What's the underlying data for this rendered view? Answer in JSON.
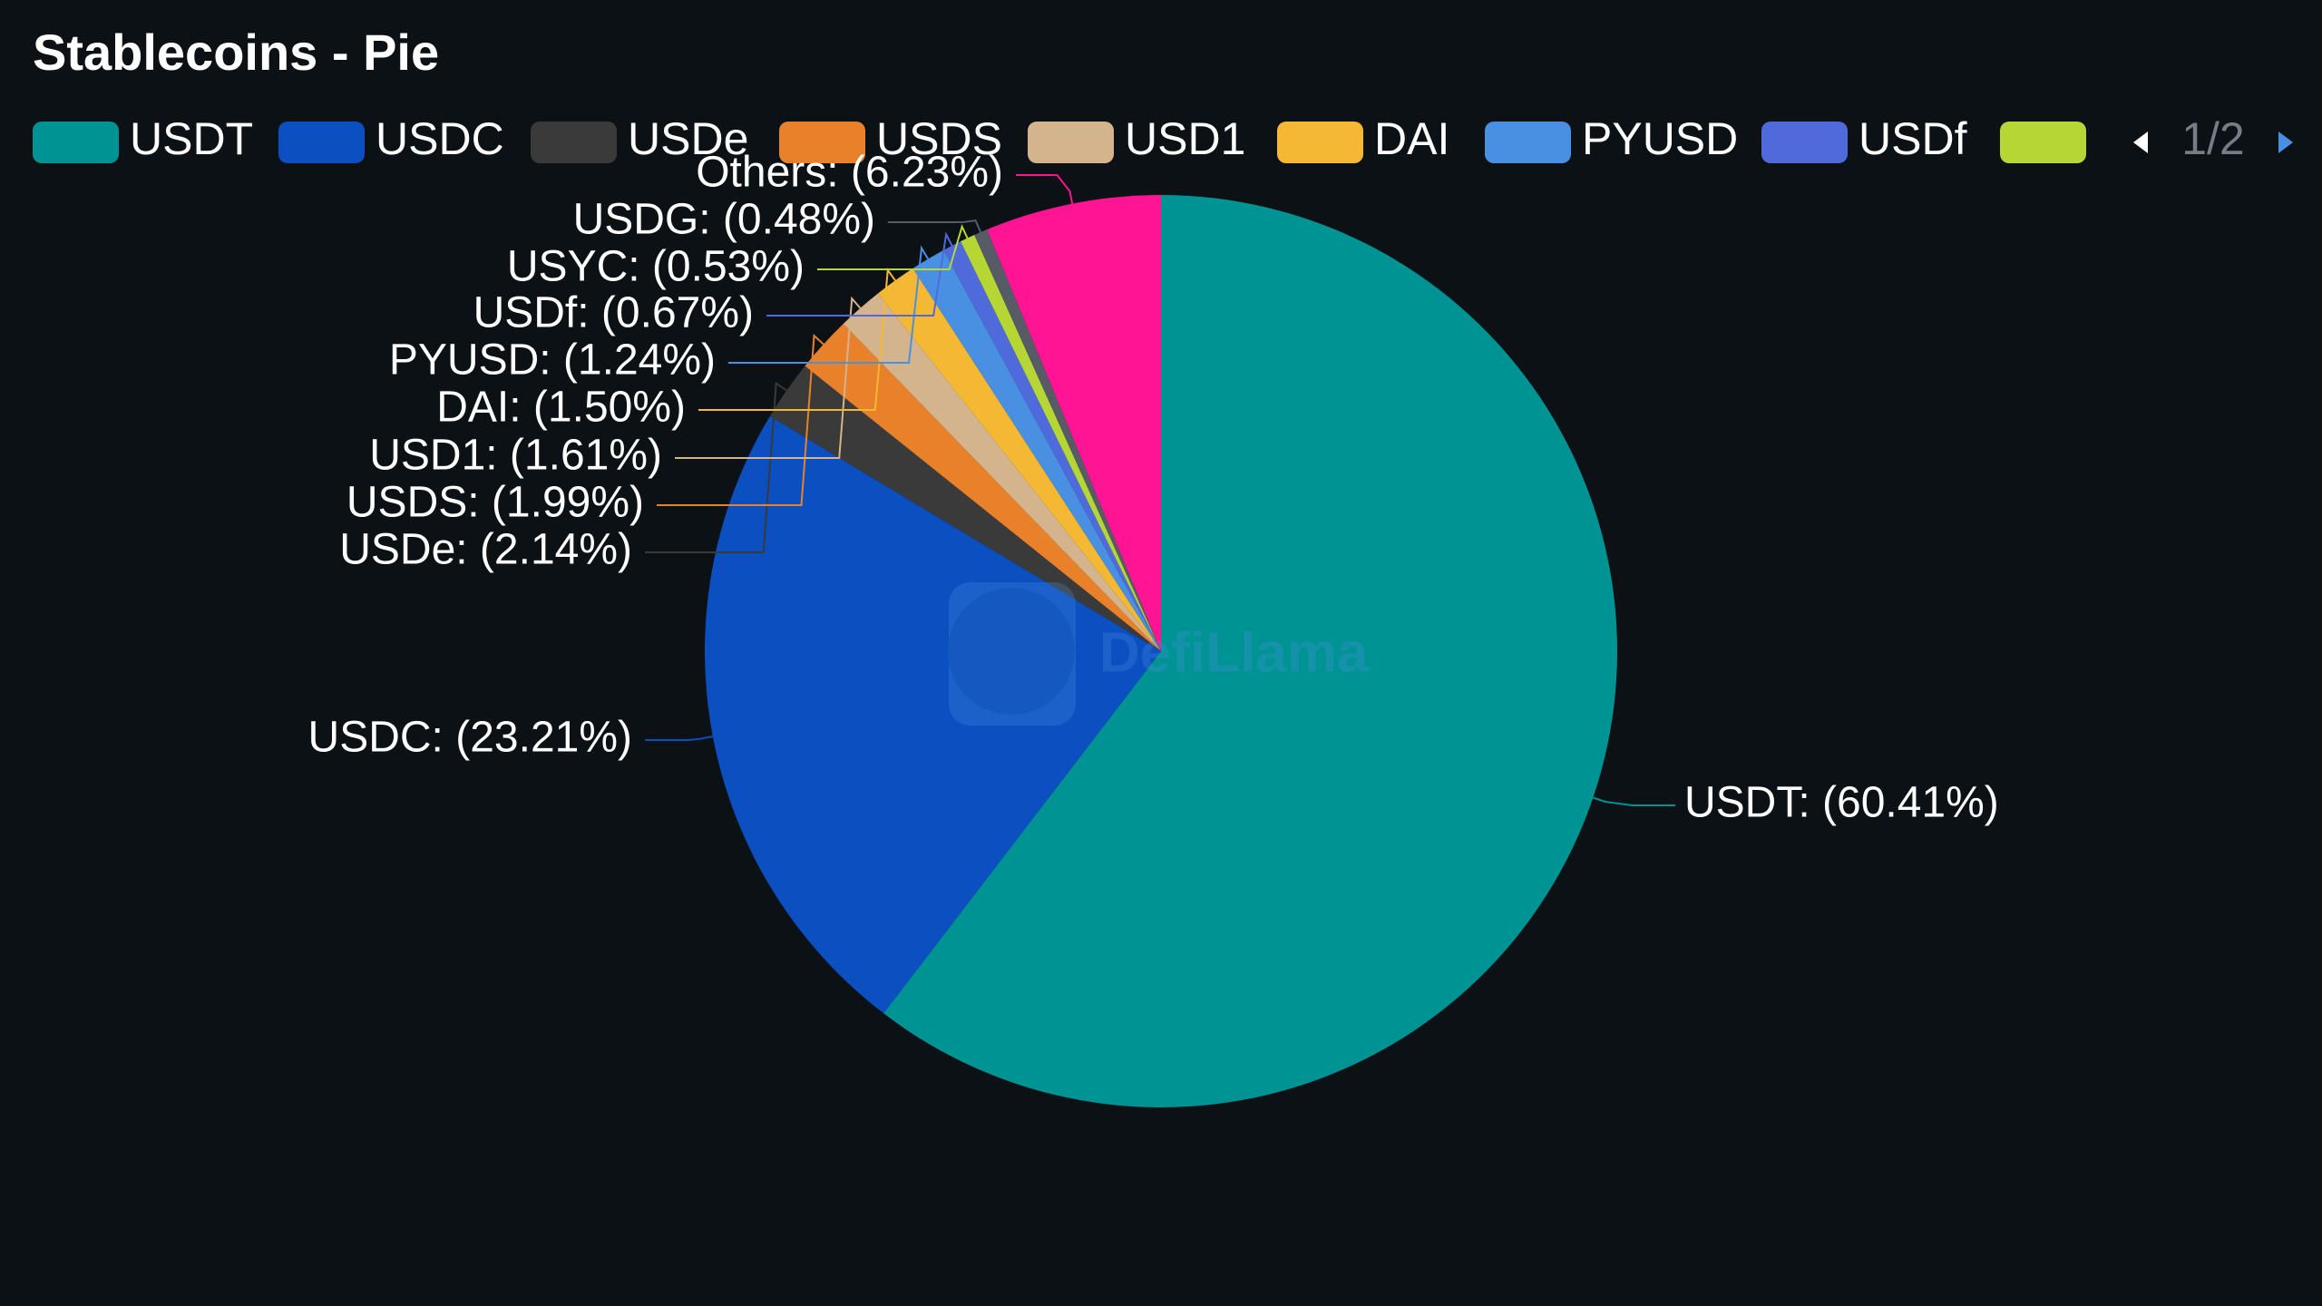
{
  "chart_data": {
    "type": "pie",
    "title": "Stablecoins - Pie",
    "categories": [
      "USDT",
      "USDC",
      "USDe",
      "USDS",
      "USD1",
      "DAI",
      "PYUSD",
      "USDf",
      "USYC",
      "USDG",
      "Others"
    ],
    "values": [
      60.41,
      23.21,
      2.14,
      1.99,
      1.61,
      1.5,
      1.24,
      0.67,
      0.53,
      0.48,
      6.23
    ],
    "value_labels": [
      "USDT: (60.41%)",
      "USDC: (23.21%)",
      "USDe: (2.14%)",
      "USDS: (1.99%)",
      "USD1: (1.61%)",
      "DAI: (1.50%)",
      "PYUSD: (1.24%)",
      "USDf: (0.67%)",
      "USYC: (0.53%)",
      "USDG: (0.48%)",
      "Others: (6.23%)"
    ],
    "colors": [
      "#009393",
      "#0b4fc1",
      "#3a3a3a",
      "#e8812a",
      "#d4b48c",
      "#f5b833",
      "#4a90e2",
      "#4f6bdb",
      "#b6d636",
      "#565b66",
      "#ff1493"
    ],
    "legend_page": "1/2",
    "watermark": "DefiLlama"
  }
}
